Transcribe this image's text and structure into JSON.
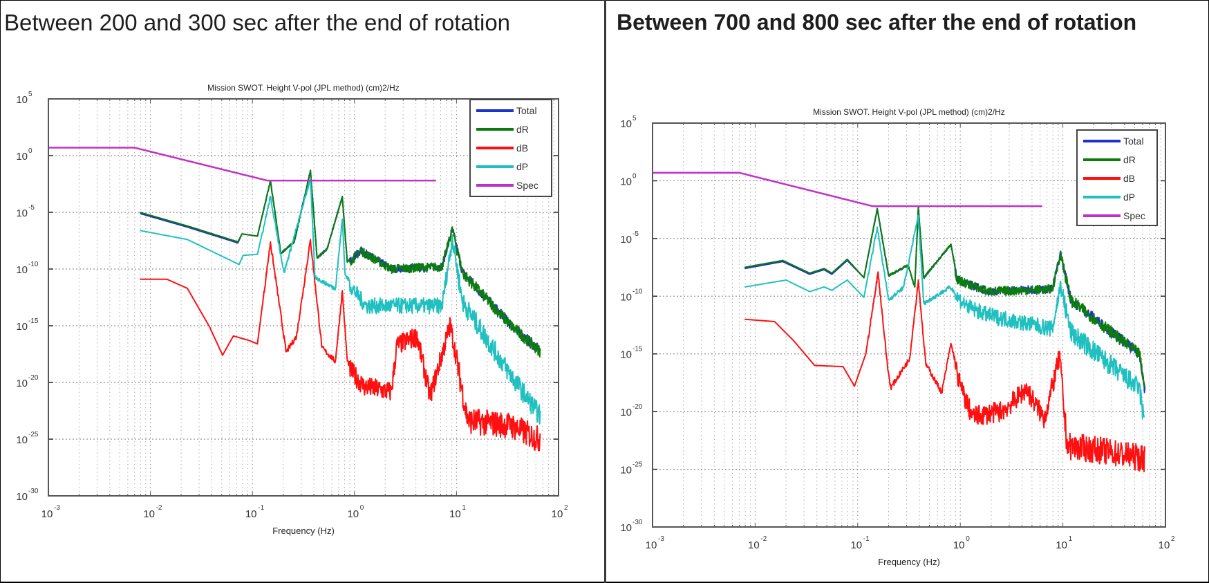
{
  "panels": [
    {
      "heading": "Between 200 and 300 sec after the end of rotation"
    },
    {
      "heading": "Between 700 and 800 sec after the end of rotation"
    }
  ],
  "colors": {
    "Total": "#2030d0",
    "dR": "#0b7d0b",
    "dB": "#ff1010",
    "dP": "#20c0c0",
    "Spec": "#c030c8"
  },
  "chart_data": [
    {
      "type": "line",
      "title": "Mission SWOT. Height V-pol (JPL method) (cm)2/Hz",
      "xlabel": "Frequency (Hz)",
      "ylabel": "",
      "xscale": "log",
      "yscale": "log",
      "xlim": [
        0.001,
        100
      ],
      "ylim": [
        1e-30,
        100000.0
      ],
      "xtick_exponents": [
        "-3",
        "-2",
        "-1",
        "0",
        "1",
        "2"
      ],
      "ytick_exponents": [
        "5",
        "0",
        "-5",
        "-10",
        "-15",
        "-20",
        "-25",
        "-30"
      ],
      "grid": true,
      "legend_position": "top-right",
      "series": [
        {
          "name": "Total",
          "points": [
            [
              0.0079,
              7.9e-06
            ],
            [
              0.023,
              5e-07
            ],
            [
              0.072,
              2e-08
            ],
            [
              0.079,
              1.26e-07
            ],
            [
              0.112,
              7.9e-08
            ],
            [
              0.15,
              0.0063
            ],
            [
              0.19,
              2.5e-09
            ],
            [
              0.257,
              2.5e-08
            ],
            [
              0.37,
              0.05
            ],
            [
              0.43,
              1e-09
            ],
            [
              0.54,
              6.3e-09
            ],
            [
              0.76,
              0.00025
            ],
            [
              0.85,
              4e-10
            ],
            [
              1.15,
              6.3e-09
            ],
            [
              2.3,
              1.6e-10
            ],
            [
              7.2,
              2.5e-10
            ],
            [
              9.1,
              5e-07
            ],
            [
              11.5,
              7.9e-11
            ],
            [
              34,
              2e-15
            ],
            [
              66,
              1e-17
            ]
          ]
        },
        {
          "name": "dR",
          "points": [
            [
              0.0079,
              1e-05
            ],
            [
              0.023,
              6.3e-07
            ],
            [
              0.072,
              2.5e-08
            ],
            [
              0.079,
              1.26e-07
            ],
            [
              0.112,
              7.9e-08
            ],
            [
              0.15,
              0.0063
            ],
            [
              0.19,
              2.5e-09
            ],
            [
              0.257,
              2.5e-08
            ],
            [
              0.37,
              0.05
            ],
            [
              0.43,
              1e-09
            ],
            [
              0.54,
              6.3e-09
            ],
            [
              0.76,
              0.00025
            ],
            [
              0.85,
              4e-10
            ],
            [
              1.15,
              6.3e-09
            ],
            [
              2.3,
              1.6e-10
            ],
            [
              7.2,
              2.5e-10
            ],
            [
              9.1,
              5e-07
            ],
            [
              11.5,
              7.9e-11
            ],
            [
              34,
              2e-15
            ],
            [
              66,
              1e-17
            ]
          ]
        },
        {
          "name": "dB",
          "points": [
            [
              0.0079,
              1.26e-11
            ],
            [
              0.0145,
              1.26e-11
            ],
            [
              0.023,
              2e-12
            ],
            [
              0.038,
              7.9e-16
            ],
            [
              0.051,
              2.5e-18
            ],
            [
              0.065,
              1.26e-16
            ],
            [
              0.093,
              5e-17
            ],
            [
              0.112,
              2.5e-17
            ],
            [
              0.15,
              2.5e-08
            ],
            [
              0.214,
              5e-18
            ],
            [
              0.27,
              1.26e-16
            ],
            [
              0.37,
              4e-08
            ],
            [
              0.48,
              1.26e-17
            ],
            [
              0.65,
              7.9e-19
            ],
            [
              0.76,
              1.26e-12
            ],
            [
              0.85,
              7.9e-19
            ],
            [
              1.23,
              1.26e-20
            ],
            [
              2.3,
              4e-21
            ],
            [
              2.6,
              5e-17
            ],
            [
              4.1,
              3.2e-16
            ],
            [
              5.5,
              1.6e-21
            ],
            [
              8.7,
              3.2e-15
            ],
            [
              12.9,
              1.6e-23
            ],
            [
              34,
              6.3e-24
            ],
            [
              66,
              3.2e-25
            ]
          ]
        },
        {
          "name": "dP",
          "points": [
            [
              0.0079,
              2.5e-07
            ],
            [
              0.023,
              4e-08
            ],
            [
              0.074,
              2.5e-10
            ],
            [
              0.081,
              1.6e-09
            ],
            [
              0.112,
              2e-09
            ],
            [
              0.15,
              0.00025
            ],
            [
              0.204,
              5e-11
            ],
            [
              0.37,
              0.01
            ],
            [
              0.41,
              2e-11
            ],
            [
              0.65,
              2e-12
            ],
            [
              0.76,
              2.5e-06
            ],
            [
              0.81,
              3.2e-11
            ],
            [
              1.29,
              1.26e-13
            ],
            [
              7.2,
              1.26e-13
            ],
            [
              9.1,
              1e-07
            ],
            [
              11.5,
              3.2e-13
            ],
            [
              34,
              1.26e-19
            ],
            [
              66,
              3.2e-23
            ]
          ]
        },
        {
          "name": "Spec",
          "points": [
            [
              0.001,
              5
            ],
            [
              0.007,
              5
            ],
            [
              0.14,
              0.0063
            ],
            [
              6.3,
              0.0063
            ]
          ]
        }
      ]
    },
    {
      "type": "line",
      "title": "Mission SWOT. Height V-pol (JPL method) (cm)2/Hz",
      "xlabel": "Frequency (Hz)",
      "ylabel": "",
      "xscale": "log",
      "yscale": "log",
      "xlim": [
        0.001,
        100
      ],
      "ylim": [
        1e-30,
        100000.0
      ],
      "xtick_exponents": [
        "-3",
        "-2",
        "-1",
        "0",
        "1",
        "2"
      ],
      "ytick_exponents": [
        "5",
        "0",
        "-5",
        "-10",
        "-15",
        "-20",
        "-25",
        "-30"
      ],
      "grid": true,
      "legend_position": "top-right",
      "series": [
        {
          "name": "Total",
          "points": [
            [
              0.0079,
              2.5e-08
            ],
            [
              0.0186,
              1e-07
            ],
            [
              0.034,
              7.9e-09
            ],
            [
              0.047,
              2e-08
            ],
            [
              0.056,
              7.9e-09
            ],
            [
              0.079,
              1.26e-07
            ],
            [
              0.115,
              4e-09
            ],
            [
              0.155,
              0.004
            ],
            [
              0.2,
              6.3e-09
            ],
            [
              0.31,
              5e-08
            ],
            [
              0.36,
              6.3e-10
            ],
            [
              0.39,
              0.005
            ],
            [
              0.44,
              4e-09
            ],
            [
              0.81,
              3.2e-06
            ],
            [
              0.93,
              4e-09
            ],
            [
              1.86,
              4e-10
            ],
            [
              7.9,
              6.3e-10
            ],
            [
              9.5,
              7.9e-07
            ],
            [
              12,
              7.9e-11
            ],
            [
              56,
              1.6e-15
            ],
            [
              63,
              1.26e-18
            ]
          ]
        },
        {
          "name": "dR",
          "points": [
            [
              0.0079,
              3.2e-08
            ],
            [
              0.0186,
              1.26e-07
            ],
            [
              0.034,
              1e-08
            ],
            [
              0.047,
              2.5e-08
            ],
            [
              0.056,
              1e-08
            ],
            [
              0.079,
              1.6e-07
            ],
            [
              0.115,
              4e-09
            ],
            [
              0.155,
              0.004
            ],
            [
              0.2,
              6.3e-09
            ],
            [
              0.31,
              5e-08
            ],
            [
              0.36,
              6.3e-10
            ],
            [
              0.39,
              0.005
            ],
            [
              0.44,
              4e-09
            ],
            [
              0.81,
              3.2e-06
            ],
            [
              0.93,
              4e-09
            ],
            [
              1.86,
              4e-10
            ],
            [
              7.9,
              6.3e-10
            ],
            [
              9.5,
              7.9e-07
            ],
            [
              12,
              7.9e-11
            ],
            [
              56,
              1.6e-15
            ],
            [
              63,
              1.26e-18
            ]
          ]
        },
        {
          "name": "dB",
          "points": [
            [
              0.0079,
              1e-12
            ],
            [
              0.0155,
              6.3e-13
            ],
            [
              0.024,
              1.26e-14
            ],
            [
              0.038,
              1e-16
            ],
            [
              0.072,
              7.9e-17
            ],
            [
              0.093,
              1.6e-18
            ],
            [
              0.12,
              1e-15
            ],
            [
              0.158,
              1.26e-08
            ],
            [
              0.195,
              1e-16
            ],
            [
              0.21,
              1.26e-18
            ],
            [
              0.32,
              4e-16
            ],
            [
              0.39,
              2.5e-09
            ],
            [
              0.46,
              1.6e-16
            ],
            [
              0.66,
              5e-19
            ],
            [
              0.81,
              7.9e-15
            ],
            [
              1.02,
              2.5e-18
            ],
            [
              1.32,
              1e-20
            ],
            [
              2.6,
              3.2e-20
            ],
            [
              4.4,
              2.5e-18
            ],
            [
              6.6,
              6.3e-21
            ],
            [
              9.3,
              1.6e-15
            ],
            [
              11,
              4e-23
            ],
            [
              24,
              1.6e-23
            ],
            [
              63,
              3.2e-24
            ]
          ]
        },
        {
          "name": "dP",
          "points": [
            [
              0.0079,
              6.3e-10
            ],
            [
              0.02,
              2.5e-09
            ],
            [
              0.034,
              2.5e-10
            ],
            [
              0.047,
              6.3e-10
            ],
            [
              0.056,
              3.2e-10
            ],
            [
              0.079,
              2.5e-09
            ],
            [
              0.115,
              7.9e-11
            ],
            [
              0.155,
              0.0001
            ],
            [
              0.2,
              5e-11
            ],
            [
              0.28,
              6.3e-10
            ],
            [
              0.39,
              0.001
            ],
            [
              0.44,
              2.5e-11
            ],
            [
              0.79,
              6.3e-10
            ],
            [
              1.2,
              2.5e-11
            ],
            [
              1.86,
              5e-12
            ],
            [
              7.9,
              3.2e-13
            ],
            [
              9.5,
              2e-09
            ],
            [
              12,
              2e-13
            ],
            [
              56,
              2.5e-18
            ],
            [
              62,
              3.2e-21
            ]
          ]
        },
        {
          "name": "Spec",
          "points": [
            [
              0.001,
              5
            ],
            [
              0.007,
              5
            ],
            [
              0.14,
              0.0063
            ],
            [
              6.3,
              0.0063
            ]
          ]
        }
      ]
    }
  ]
}
